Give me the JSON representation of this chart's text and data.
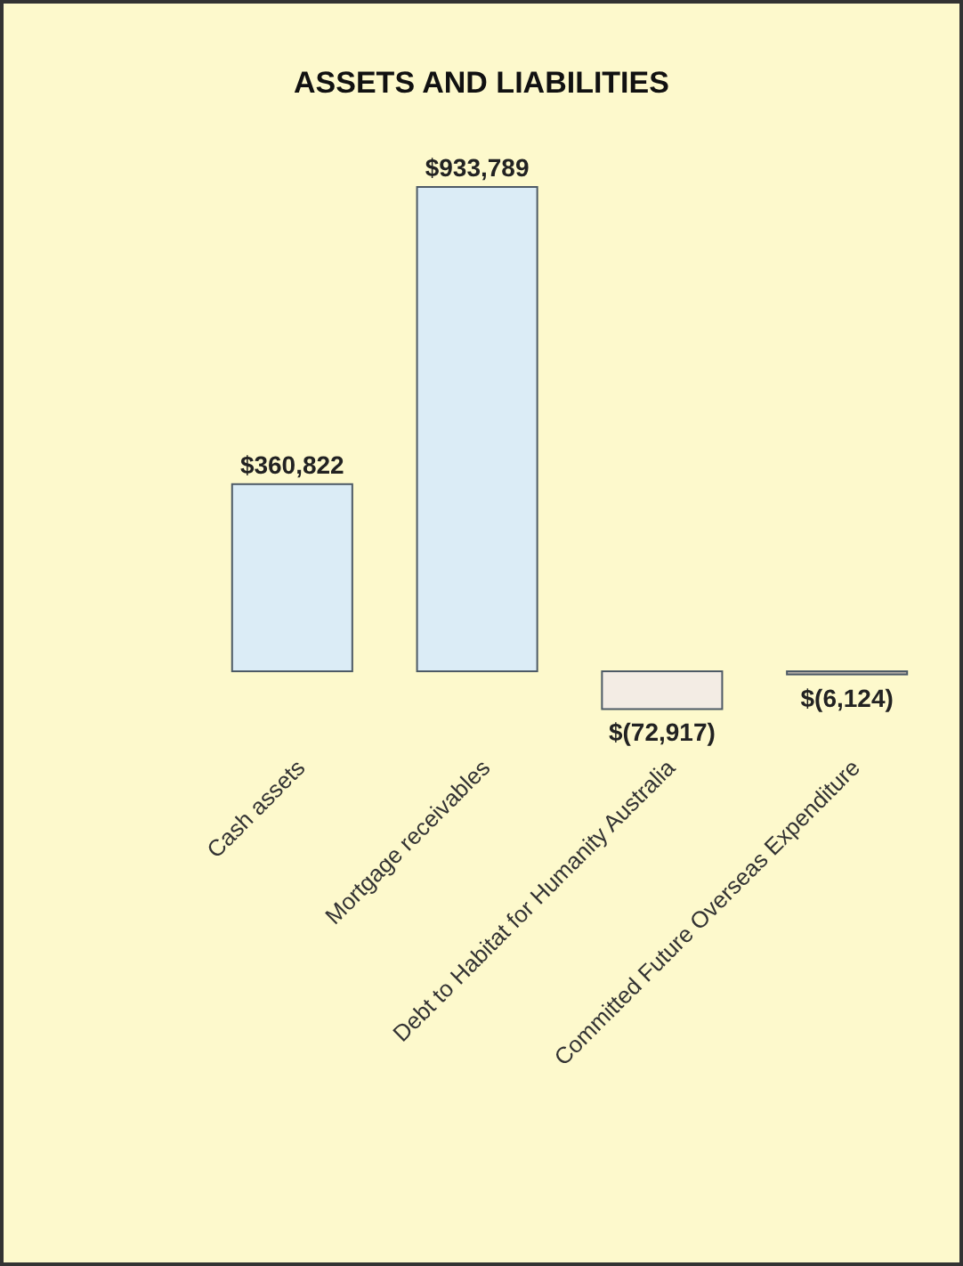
{
  "chart_data": {
    "type": "bar",
    "title": "ASSETS AND LIABILITIES",
    "categories": [
      "Cash assets",
      "Mortgage receivables",
      "Debt to Habitat for Humanity Australia",
      "Committed Future Overseas Expenditure"
    ],
    "values": [
      360822,
      933789,
      -72917,
      -6124
    ],
    "colors": [
      "#dbecf6",
      "#dbecf6",
      "#f3ece4",
      "#b7b0a8"
    ],
    "value_labels": [
      "$360,822",
      "$933,789",
      "$(72,917)",
      "$(6,124)"
    ]
  }
}
